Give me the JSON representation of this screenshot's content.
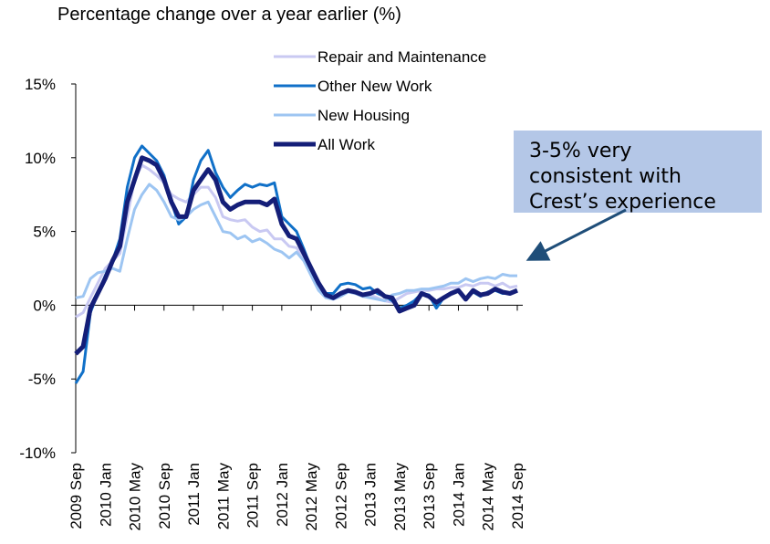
{
  "chart_data": {
    "type": "line",
    "title": "Percentage change over a year earlier (%)",
    "categories": [
      "2009 Sep",
      null,
      null,
      null,
      "2010 Jan",
      null,
      null,
      null,
      "2010 May",
      null,
      null,
      null,
      "2010 Sep",
      null,
      null,
      null,
      "2011 Jan",
      null,
      null,
      null,
      "2011 May",
      null,
      null,
      null,
      "2011 Sep",
      null,
      null,
      null,
      "2012 Jan",
      null,
      null,
      null,
      "2012 May",
      null,
      null,
      null,
      "2012 Sep",
      null,
      null,
      null,
      "2013 Jan",
      null,
      null,
      null,
      "2013 May",
      null,
      null,
      null,
      "2013 Sep",
      null,
      null,
      null,
      "2014 Jan",
      null,
      null,
      null,
      "2014 May",
      null,
      null,
      null,
      "2014 Sep"
    ],
    "series": [
      {
        "name": "Repair and Maintenance",
        "color": "#c9c9f2",
        "values": [
          -0.8,
          -0.5,
          0.5,
          1.5,
          2.5,
          3,
          3.5,
          6,
          8.5,
          9.5,
          9.2,
          8.8,
          8.3,
          7.5,
          7.2,
          7,
          7.5,
          8,
          8,
          7.3,
          6,
          5.8,
          5.7,
          5.8,
          5.3,
          5,
          5.1,
          4.5,
          4.5,
          4,
          3.9,
          3.2,
          2.2,
          1.2,
          0.7,
          0.6,
          0.8,
          0.9,
          0.8,
          0.6,
          0.7,
          0.5,
          0.3,
          0.2,
          0.5,
          0.8,
          0.9,
          1,
          1,
          1.1,
          1.1,
          1.2,
          1.2,
          1.4,
          1.3,
          1.5,
          1.5,
          1.3,
          1.5,
          1.2,
          1.3
        ]
      },
      {
        "name": "Other New Work",
        "color": "#1070c8",
        "values": [
          -5.3,
          -4.5,
          -0.5,
          0.8,
          2,
          3,
          4.5,
          8,
          10,
          10.8,
          10.3,
          9.8,
          8.8,
          7,
          5.5,
          6,
          8.5,
          9.8,
          10.5,
          9,
          8,
          7.3,
          7.8,
          8.2,
          8,
          8.2,
          8.1,
          8.3,
          6,
          5.5,
          5,
          3.8,
          2.5,
          1.5,
          0.8,
          0.8,
          1.4,
          1.5,
          1.4,
          1.1,
          1.2,
          0.8,
          0.6,
          0.3,
          -0.2,
          0,
          0.3,
          0.8,
          0.7,
          -0.2,
          0.5,
          0.8,
          1,
          0.4,
          0.9,
          0.6,
          0.9,
          1,
          0.8,
          0.8,
          1
        ]
      },
      {
        "name": "New Housing",
        "color": "#9dc5f2",
        "values": [
          0.5,
          0.6,
          1.8,
          2.2,
          2.3,
          2.5,
          2.3,
          4.5,
          6.5,
          7.5,
          8.2,
          7.8,
          7,
          6,
          5.8,
          6,
          6.5,
          6.8,
          7,
          6,
          5,
          4.9,
          4.5,
          4.7,
          4.3,
          4.5,
          4.2,
          3.8,
          3.6,
          3.2,
          3.6,
          3,
          2,
          1,
          0.5,
          0.4,
          0.6,
          0.9,
          0.8,
          0.6,
          0.5,
          0.4,
          0.3,
          0.7,
          0.8,
          1,
          1,
          1.1,
          1.1,
          1.2,
          1.3,
          1.5,
          1.5,
          1.8,
          1.6,
          1.8,
          1.9,
          1.8,
          2.1,
          2,
          2
        ]
      },
      {
        "name": "All Work",
        "color": "#141e78",
        "values": [
          -3.3,
          -2.8,
          -0.2,
          0.8,
          1.8,
          3,
          4,
          7,
          8.5,
          10,
          9.8,
          9.5,
          8.5,
          7,
          6,
          6,
          7.8,
          8.5,
          9.2,
          8.5,
          7,
          6.5,
          6.8,
          7,
          7,
          7,
          6.8,
          7.2,
          5.5,
          4.7,
          4.5,
          3.5,
          2.5,
          1.5,
          0.7,
          0.5,
          0.8,
          1,
          0.9,
          0.7,
          0.8,
          1,
          0.6,
          0.5,
          -0.4,
          -0.2,
          0,
          0.8,
          0.6,
          0.2,
          0.5,
          0.8,
          1,
          0.4,
          1,
          0.7,
          0.8,
          1.1,
          0.9,
          0.8,
          1
        ]
      }
    ],
    "ylim": [
      -10,
      15
    ],
    "yticks": [
      {
        "value": -10,
        "label": "-10%"
      },
      {
        "value": -5,
        "label": "-5%"
      },
      {
        "value": 0,
        "label": "0%"
      },
      {
        "value": 5,
        "label": "5%"
      },
      {
        "value": 10,
        "label": "10%"
      },
      {
        "value": 15,
        "label": "15%"
      }
    ],
    "legend": "top",
    "annotation": [
      "3-5% very",
      "consistent with",
      "Crest’s experience"
    ]
  }
}
